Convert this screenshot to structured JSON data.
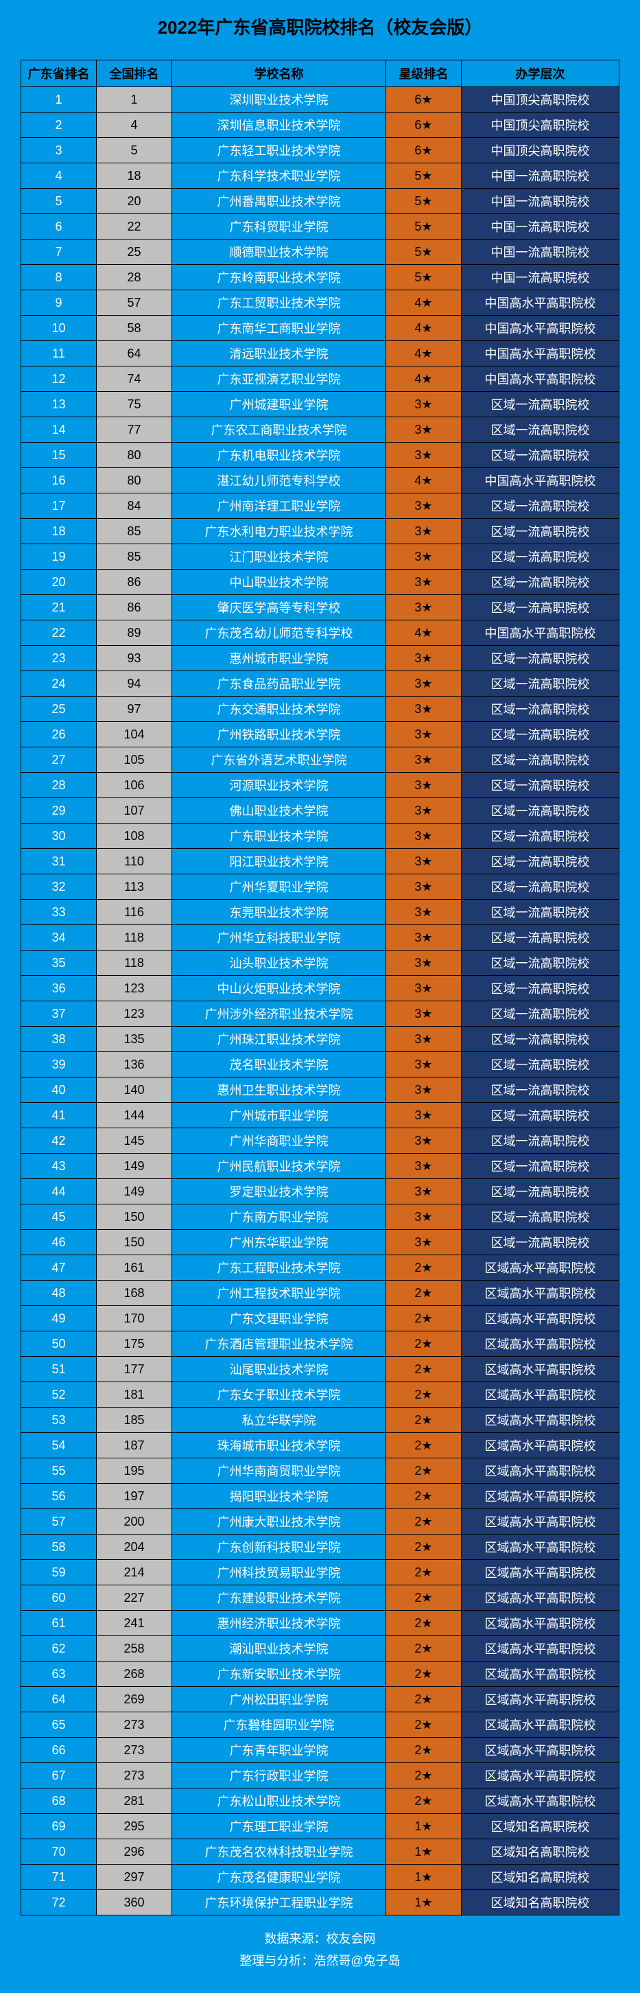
{
  "title": "2022年广东省高职院校排名（校友会版）",
  "columns": [
    "广东省排名",
    "全国排名",
    "学校名称",
    "星级排名",
    "办学层次"
  ],
  "colors": {
    "page_bg": "#0099e6",
    "prov_bg": "#0099e6",
    "nat_bg": "#c0c0c0",
    "name_bg": "#0099e6",
    "star_bg": "#d2691e",
    "level_bg": "#1e3a6e",
    "border": "#000000",
    "title_color": "#000000",
    "light_text": "#ffffff",
    "dark_text": "#000000"
  },
  "rows": [
    [
      "1",
      "1",
      "深圳职业技术学院",
      "6★",
      "中国顶尖高职院校"
    ],
    [
      "2",
      "4",
      "深圳信息职业技术学院",
      "6★",
      "中国顶尖高职院校"
    ],
    [
      "3",
      "5",
      "广东轻工职业技术学院",
      "6★",
      "中国顶尖高职院校"
    ],
    [
      "4",
      "18",
      "广东科学技术职业学院",
      "5★",
      "中国一流高职院校"
    ],
    [
      "5",
      "20",
      "广州番禺职业技术学院",
      "5★",
      "中国一流高职院校"
    ],
    [
      "6",
      "22",
      "广东科贸职业学院",
      "5★",
      "中国一流高职院校"
    ],
    [
      "7",
      "25",
      "顺德职业技术学院",
      "5★",
      "中国一流高职院校"
    ],
    [
      "8",
      "28",
      "广东岭南职业技术学院",
      "5★",
      "中国一流高职院校"
    ],
    [
      "9",
      "57",
      "广东工贸职业技术学院",
      "4★",
      "中国高水平高职院校"
    ],
    [
      "10",
      "58",
      "广东南华工商职业学院",
      "4★",
      "中国高水平高职院校"
    ],
    [
      "11",
      "64",
      "清远职业技术学院",
      "4★",
      "中国高水平高职院校"
    ],
    [
      "12",
      "74",
      "广东亚视演艺职业学院",
      "4★",
      "中国高水平高职院校"
    ],
    [
      "13",
      "75",
      "广州城建职业学院",
      "3★",
      "区域一流高职院校"
    ],
    [
      "14",
      "77",
      "广东农工商职业技术学院",
      "3★",
      "区域一流高职院校"
    ],
    [
      "15",
      "80",
      "广东机电职业技术学院",
      "3★",
      "区域一流高职院校"
    ],
    [
      "16",
      "80",
      "湛江幼儿师范专科学校",
      "4★",
      "中国高水平高职院校"
    ],
    [
      "17",
      "84",
      "广州南洋理工职业学院",
      "3★",
      "区域一流高职院校"
    ],
    [
      "18",
      "85",
      "广东水利电力职业技术学院",
      "3★",
      "区域一流高职院校"
    ],
    [
      "19",
      "85",
      "江门职业技术学院",
      "3★",
      "区域一流高职院校"
    ],
    [
      "20",
      "86",
      "中山职业技术学院",
      "3★",
      "区域一流高职院校"
    ],
    [
      "21",
      "86",
      "肇庆医学高等专科学校",
      "3★",
      "区域一流高职院校"
    ],
    [
      "22",
      "89",
      "广东茂名幼儿师范专科学校",
      "4★",
      "中国高水平高职院校"
    ],
    [
      "23",
      "93",
      "惠州城市职业学院",
      "3★",
      "区域一流高职院校"
    ],
    [
      "24",
      "94",
      "广东食品药品职业学院",
      "3★",
      "区域一流高职院校"
    ],
    [
      "25",
      "97",
      "广东交通职业技术学院",
      "3★",
      "区域一流高职院校"
    ],
    [
      "26",
      "104",
      "广州铁路职业技术学院",
      "3★",
      "区域一流高职院校"
    ],
    [
      "27",
      "105",
      "广东省外语艺术职业学院",
      "3★",
      "区域一流高职院校"
    ],
    [
      "28",
      "106",
      "河源职业技术学院",
      "3★",
      "区域一流高职院校"
    ],
    [
      "29",
      "107",
      "佛山职业技术学院",
      "3★",
      "区域一流高职院校"
    ],
    [
      "30",
      "108",
      "广东职业技术学院",
      "3★",
      "区域一流高职院校"
    ],
    [
      "31",
      "110",
      "阳江职业技术学院",
      "3★",
      "区域一流高职院校"
    ],
    [
      "32",
      "113",
      "广州华夏职业学院",
      "3★",
      "区域一流高职院校"
    ],
    [
      "33",
      "116",
      "东莞职业技术学院",
      "3★",
      "区域一流高职院校"
    ],
    [
      "34",
      "118",
      "广州华立科技职业学院",
      "3★",
      "区域一流高职院校"
    ],
    [
      "35",
      "118",
      "汕头职业技术学院",
      "3★",
      "区域一流高职院校"
    ],
    [
      "36",
      "123",
      "中山火炬职业技术学院",
      "3★",
      "区域一流高职院校"
    ],
    [
      "37",
      "123",
      "广州涉外经济职业技术学院",
      "3★",
      "区域一流高职院校"
    ],
    [
      "38",
      "135",
      "广州珠江职业技术学院",
      "3★",
      "区域一流高职院校"
    ],
    [
      "39",
      "136",
      "茂名职业技术学院",
      "3★",
      "区域一流高职院校"
    ],
    [
      "40",
      "140",
      "惠州卫生职业技术学院",
      "3★",
      "区域一流高职院校"
    ],
    [
      "41",
      "144",
      "广州城市职业学院",
      "3★",
      "区域一流高职院校"
    ],
    [
      "42",
      "145",
      "广州华商职业学院",
      "3★",
      "区域一流高职院校"
    ],
    [
      "43",
      "149",
      "广州民航职业技术学院",
      "3★",
      "区域一流高职院校"
    ],
    [
      "44",
      "149",
      "罗定职业技术学院",
      "3★",
      "区域一流高职院校"
    ],
    [
      "45",
      "150",
      "广东南方职业学院",
      "3★",
      "区域一流高职院校"
    ],
    [
      "46",
      "150",
      "广州东华职业学院",
      "3★",
      "区域一流高职院校"
    ],
    [
      "47",
      "161",
      "广东工程职业技术学院",
      "2★",
      "区域高水平高职院校"
    ],
    [
      "48",
      "168",
      "广州工程技术职业学院",
      "2★",
      "区域高水平高职院校"
    ],
    [
      "49",
      "170",
      "广东文理职业学院",
      "2★",
      "区域高水平高职院校"
    ],
    [
      "50",
      "175",
      "广东酒店管理职业技术学院",
      "2★",
      "区域高水平高职院校"
    ],
    [
      "51",
      "177",
      "汕尾职业技术学院",
      "2★",
      "区域高水平高职院校"
    ],
    [
      "52",
      "181",
      "广东女子职业技术学院",
      "2★",
      "区域高水平高职院校"
    ],
    [
      "53",
      "185",
      "私立华联学院",
      "2★",
      "区域高水平高职院校"
    ],
    [
      "54",
      "187",
      "珠海城市职业技术学院",
      "2★",
      "区域高水平高职院校"
    ],
    [
      "55",
      "195",
      "广州华南商贸职业学院",
      "2★",
      "区域高水平高职院校"
    ],
    [
      "56",
      "197",
      "揭阳职业技术学院",
      "2★",
      "区域高水平高职院校"
    ],
    [
      "57",
      "200",
      "广州康大职业技术学院",
      "2★",
      "区域高水平高职院校"
    ],
    [
      "58",
      "204",
      "广东创新科技职业学院",
      "2★",
      "区域高水平高职院校"
    ],
    [
      "59",
      "214",
      "广州科技贸易职业学院",
      "2★",
      "区域高水平高职院校"
    ],
    [
      "60",
      "227",
      "广东建设职业技术学院",
      "2★",
      "区域高水平高职院校"
    ],
    [
      "61",
      "241",
      "惠州经济职业技术学院",
      "2★",
      "区域高水平高职院校"
    ],
    [
      "62",
      "258",
      "潮汕职业技术学院",
      "2★",
      "区域高水平高职院校"
    ],
    [
      "63",
      "268",
      "广东新安职业技术学院",
      "2★",
      "区域高水平高职院校"
    ],
    [
      "64",
      "269",
      "广州松田职业学院",
      "2★",
      "区域高水平高职院校"
    ],
    [
      "65",
      "273",
      "广东碧桂园职业学院",
      "2★",
      "区域高水平高职院校"
    ],
    [
      "66",
      "273",
      "广东青年职业学院",
      "2★",
      "区域高水平高职院校"
    ],
    [
      "67",
      "273",
      "广东行政职业学院",
      "2★",
      "区域高水平高职院校"
    ],
    [
      "68",
      "281",
      "广东松山职业技术学院",
      "2★",
      "区域高水平高职院校"
    ],
    [
      "69",
      "295",
      "广东理工职业学院",
      "1★",
      "区域知名高职院校"
    ],
    [
      "70",
      "296",
      "广东茂名农林科技职业学院",
      "1★",
      "区域知名高职院校"
    ],
    [
      "71",
      "297",
      "广东茂名健康职业学院",
      "1★",
      "区域知名高职院校"
    ],
    [
      "72",
      "360",
      "广东环境保护工程职业学院",
      "1★",
      "区域知名高职院校"
    ]
  ],
  "footer": {
    "line1": "数据来源：校友会网",
    "line2": "整理与分析：浩然哥@兔子岛"
  }
}
